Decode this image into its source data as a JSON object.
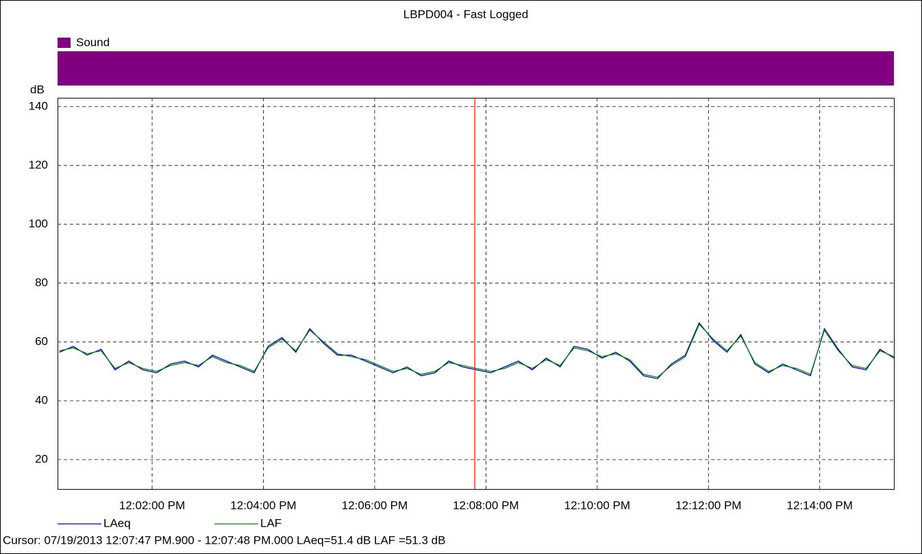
{
  "chart_data": {
    "type": "line",
    "title": "LBPD004 - Fast Logged",
    "y_label": "dB",
    "event": {
      "name": "Sound",
      "color": "#800080"
    },
    "x": [
      "12:00:20 PM",
      "12:00:35 PM",
      "12:00:50 PM",
      "12:01:05 PM",
      "12:01:20 PM",
      "12:01:35 PM",
      "12:01:50 PM",
      "12:02:05 PM",
      "12:02:20 PM",
      "12:02:35 PM",
      "12:02:50 PM",
      "12:03:05 PM",
      "12:03:20 PM",
      "12:03:35 PM",
      "12:03:50 PM",
      "12:04:05 PM",
      "12:04:20 PM",
      "12:04:35 PM",
      "12:04:50 PM",
      "12:05:05 PM",
      "12:05:20 PM",
      "12:05:35 PM",
      "12:05:50 PM",
      "12:06:05 PM",
      "12:06:20 PM",
      "12:06:35 PM",
      "12:06:50 PM",
      "12:07:05 PM",
      "12:07:20 PM",
      "12:07:35 PM",
      "12:07:50 PM",
      "12:08:05 PM",
      "12:08:20 PM",
      "12:08:35 PM",
      "12:08:50 PM",
      "12:09:05 PM",
      "12:09:20 PM",
      "12:09:35 PM",
      "12:09:50 PM",
      "12:10:05 PM",
      "12:10:20 PM",
      "12:10:35 PM",
      "12:10:50 PM",
      "12:11:05 PM",
      "12:11:20 PM",
      "12:11:35 PM",
      "12:11:50 PM",
      "12:12:05 PM",
      "12:12:20 PM",
      "12:12:35 PM",
      "12:12:50 PM",
      "12:13:05 PM",
      "12:13:20 PM",
      "12:13:35 PM",
      "12:13:50 PM",
      "12:14:05 PM",
      "12:14:20 PM",
      "12:14:35 PM",
      "12:14:50 PM",
      "12:15:05 PM",
      "12:15:20 PM"
    ],
    "series": [
      {
        "name": "LAeq",
        "color": "#0000cc",
        "values": [
          56.5,
          58.5,
          55.5,
          57.5,
          50.5,
          53.5,
          50.5,
          49.5,
          52.5,
          53.5,
          51.5,
          55.5,
          53.5,
          51.5,
          49.5,
          58.5,
          61.5,
          56.5,
          64.5,
          59.5,
          55.5,
          55.5,
          53.5,
          51.5,
          49.5,
          51.5,
          48.5,
          49.5,
          53.5,
          51.5,
          50.5,
          49.5,
          51.5,
          53.5,
          50.5,
          54.5,
          51.5,
          58.5,
          57.5,
          54.5,
          56.5,
          53.5,
          48.5,
          47.5,
          52.5,
          55.5,
          66.5,
          60.5,
          56.5,
          62.5,
          52.5,
          49.5,
          52.5,
          50.5,
          48.5,
          64.5,
          57.5,
          51.5,
          50.5,
          57.5,
          54.5
        ]
      },
      {
        "name": "LAF",
        "color": "#008000",
        "values": [
          57,
          58,
          56,
          57,
          51,
          53,
          51,
          50,
          52,
          53,
          52,
          55,
          53,
          52,
          50,
          58,
          61,
          57,
          64,
          60,
          56,
          55,
          54,
          52,
          50,
          51,
          49,
          50,
          53,
          52,
          51,
          50,
          51,
          53,
          51,
          54,
          52,
          58,
          57,
          55,
          56,
          54,
          49,
          48,
          52,
          55,
          66,
          61,
          57,
          62,
          53,
          50,
          52,
          51,
          49,
          64,
          57,
          52,
          51,
          57,
          55
        ]
      }
    ],
    "xlim": [
      "12:00:18 PM",
      "12:15:20 PM"
    ],
    "xticks": [
      "12:02:00 PM",
      "12:04:00 PM",
      "12:06:00 PM",
      "12:08:00 PM",
      "12:10:00 PM",
      "12:12:00 PM",
      "12:14:00 PM"
    ],
    "ylim": [
      10,
      143
    ],
    "yticks": [
      20,
      40,
      60,
      80,
      100,
      120,
      140
    ],
    "grid": true,
    "cursor": {
      "x": "12:07:48 PM",
      "color": "#ff0000",
      "label": "Cursor: 07/19/2013 12:07:47 PM.900 - 12:07:48 PM.000  LAeq=51.4 dB  LAF =51.3 dB"
    }
  }
}
